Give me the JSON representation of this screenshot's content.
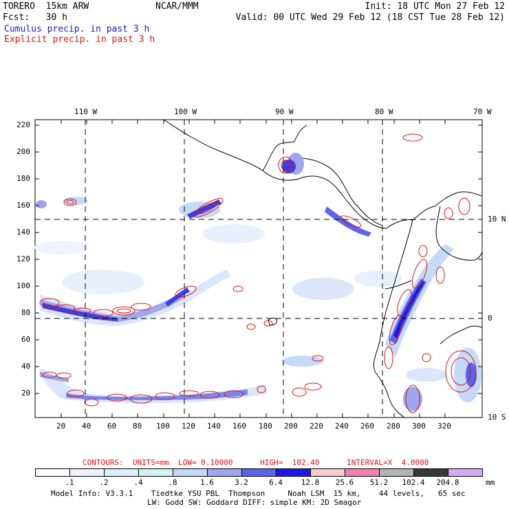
{
  "header": {
    "model": "TORERO  15km ARW",
    "org": "NCAR/MMM",
    "init": "Init: 18 UTC Mon 27 Feb 12",
    "fcst": "Fcst:   30 h",
    "valid": "Valid: 00 UTC Wed 29 Feb 12 (18 CST Tue 28 Feb 12)"
  },
  "legend": {
    "cumulus": "Cumulus precip. in past 3 h",
    "explicit": "Explicit precip. in past 3 h"
  },
  "map": {
    "lon_labels": [
      "110 W",
      "100 W",
      "90 W",
      "80 W",
      "70 W"
    ],
    "lat_labels": [
      "10 N",
      "0",
      "10 S"
    ],
    "y_ticks": [
      "220",
      "200",
      "180",
      "160",
      "140",
      "120",
      "100",
      "80",
      "60",
      "40",
      "20"
    ],
    "x_ticks": [
      "20",
      "40",
      "60",
      "80",
      "100",
      "120",
      "140",
      "160",
      "180",
      "200",
      "220",
      "240",
      "260",
      "280",
      "300",
      "320"
    ]
  },
  "contours": {
    "text": "CONTOURS:  UNITS=mm  LOW= 0.10000      HIGH=  102.40      INTERVAL=X  4.0000"
  },
  "colorbar": {
    "labels": [
      ".1",
      ".2",
      ".4",
      ".8",
      "1.6",
      "3.2",
      "6.4",
      "12.8",
      "25.6",
      "51.2",
      "102.4",
      "204.8"
    ],
    "colors": [
      "#ffffff",
      "#eef4ff",
      "#ddeeff",
      "#d2f2f6",
      "#c4daf8",
      "#9ea6f0",
      "#5a64ec",
      "#1a1ae8",
      "#f8cccc",
      "#f480b0",
      "#b4b4b4",
      "#383838",
      "#d8a8f8"
    ],
    "unit": "mm"
  },
  "model_info": {
    "line1": "Model Info: V3.3.1    Tiedtke YSU PBL  Thompson     Noah LSM  15 km,    44 levels,   65 sec",
    "line2": "LW: Godd SW: Goddard DIFF: simple KM: 2D Smagor"
  }
}
